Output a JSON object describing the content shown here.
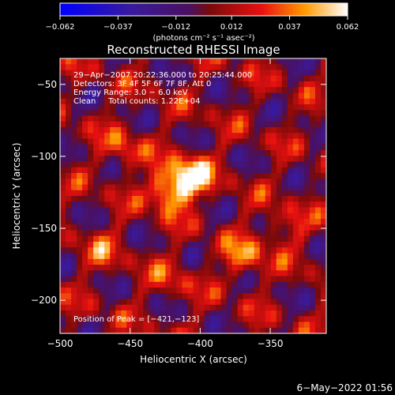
{
  "chart_data": {
    "type": "heatmap",
    "title": "Reconstructed RHESSI Image",
    "xlabel": "Heliocentric X (arcsec)",
    "ylabel": "Heliocentric Y (arcsec)",
    "xlim": [
      -500,
      -310
    ],
    "ylim": [
      -223,
      -32
    ],
    "xticks": [
      -500,
      -450,
      -400,
      -350
    ],
    "xtick_labels": [
      "−500",
      "−450",
      "−400",
      "−350"
    ],
    "yticks": [
      -50,
      -100,
      -150,
      -200
    ],
    "ytick_labels": [
      "−50",
      "−100",
      "−150",
      "−200"
    ],
    "colorbar": {
      "range": [
        -0.062,
        0.062
      ],
      "ticks": [
        -0.062,
        -0.037,
        -0.012,
        0.012,
        0.037,
        0.062
      ],
      "tick_labels": [
        "−0.062",
        "−0.037",
        "−0.012",
        "0.012",
        "0.037",
        "0.062"
      ],
      "unit_label": "(photons cm⁻² s⁻¹ asec⁻²)"
    },
    "annotations": [
      "29−Apr−2007 20:22:36.000 to 20:25:44.000",
      "Detectors: 3F 4F 5F 6F 7F 8F, Att 0",
      "Energy Range: 3.0 − 6.0 keV",
      "Clean     Total counts: 1.22E+04"
    ],
    "peak_label": "Position of Peak = [−421,−123]",
    "peak": [
      -421,
      -123
    ],
    "sources": [
      {
        "x": -421,
        "y": -123,
        "intensity": 0.062
      },
      {
        "x": -405,
        "y": -113,
        "intensity": 0.05
      },
      {
        "x": -368,
        "y": -170,
        "intensity": 0.035
      },
      {
        "x": -455,
        "y": -95,
        "intensity": 0.025
      },
      {
        "x": -470,
        "y": -165,
        "intensity": 0.02
      },
      {
        "x": -340,
        "y": -150,
        "intensity": 0.022
      },
      {
        "x": -420,
        "y": -185,
        "intensity": 0.018
      }
    ],
    "timestamp": "6−May−2022 01:56"
  }
}
